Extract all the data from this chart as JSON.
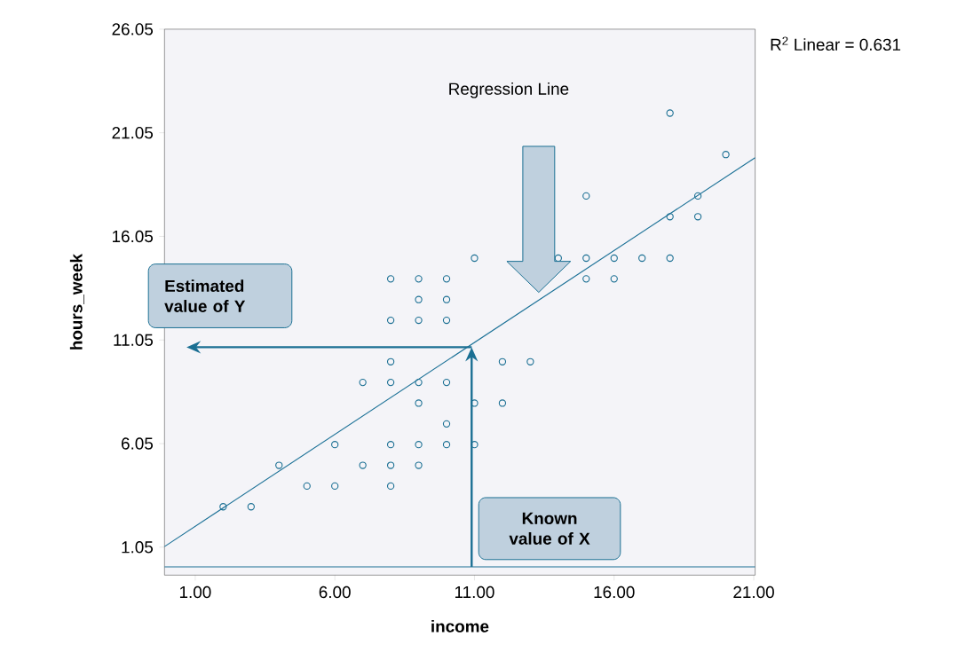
{
  "chart_data": {
    "type": "scatter",
    "xlabel": "income",
    "ylabel": "hours_week",
    "xlim": [
      -0.1,
      21.05
    ],
    "ylim": [
      -0.3,
      26.05
    ],
    "xticks": [
      {
        "value": 1,
        "label": "1.00"
      },
      {
        "value": 6,
        "label": "6.00"
      },
      {
        "value": 11,
        "label": "11.00"
      },
      {
        "value": 16,
        "label": "16.00"
      },
      {
        "value": 21,
        "label": "21.00"
      }
    ],
    "yticks": [
      1.05,
      6.05,
      11.05,
      16.05,
      21.05,
      26.05
    ],
    "grid": false,
    "series": [
      {
        "color": "#1a6f93",
        "marker": "circle",
        "x": [
          2,
          3,
          4,
          5,
          6,
          6,
          7,
          7,
          8,
          8,
          8,
          8,
          8,
          8,
          8,
          9,
          9,
          9,
          9,
          9,
          9,
          9,
          10,
          10,
          10,
          10,
          10,
          10,
          11,
          11,
          11,
          12,
          12,
          13,
          14,
          15,
          15,
          15,
          16,
          16,
          17,
          18,
          18,
          18,
          19,
          19,
          20
        ],
        "values": [
          3,
          3,
          5,
          4,
          6,
          4,
          5,
          9,
          14,
          12,
          10,
          9,
          6,
          5,
          4,
          14,
          13,
          12,
          9,
          8,
          6,
          5,
          14,
          13,
          12,
          9,
          7,
          6,
          15,
          8,
          6,
          10,
          8,
          10,
          15,
          18,
          15,
          14,
          15,
          14,
          15,
          22,
          17,
          15,
          18,
          17,
          20
        ]
      },
      {
        "type": "line",
        "color": "#1a7096",
        "line_style": "solid",
        "x": [
          -0.1,
          21.05
        ],
        "values": [
          1.08,
          19.85
        ]
      }
    ],
    "ref_lines": [
      {
        "axis": "y",
        "value": 0.1,
        "color": "#1a6f93"
      }
    ],
    "annotations": [
      "Regression Line",
      "Estimated value of Y",
      "Known value of X",
      "R$^{2}$ Linear = 0.631"
    ]
  }
}
